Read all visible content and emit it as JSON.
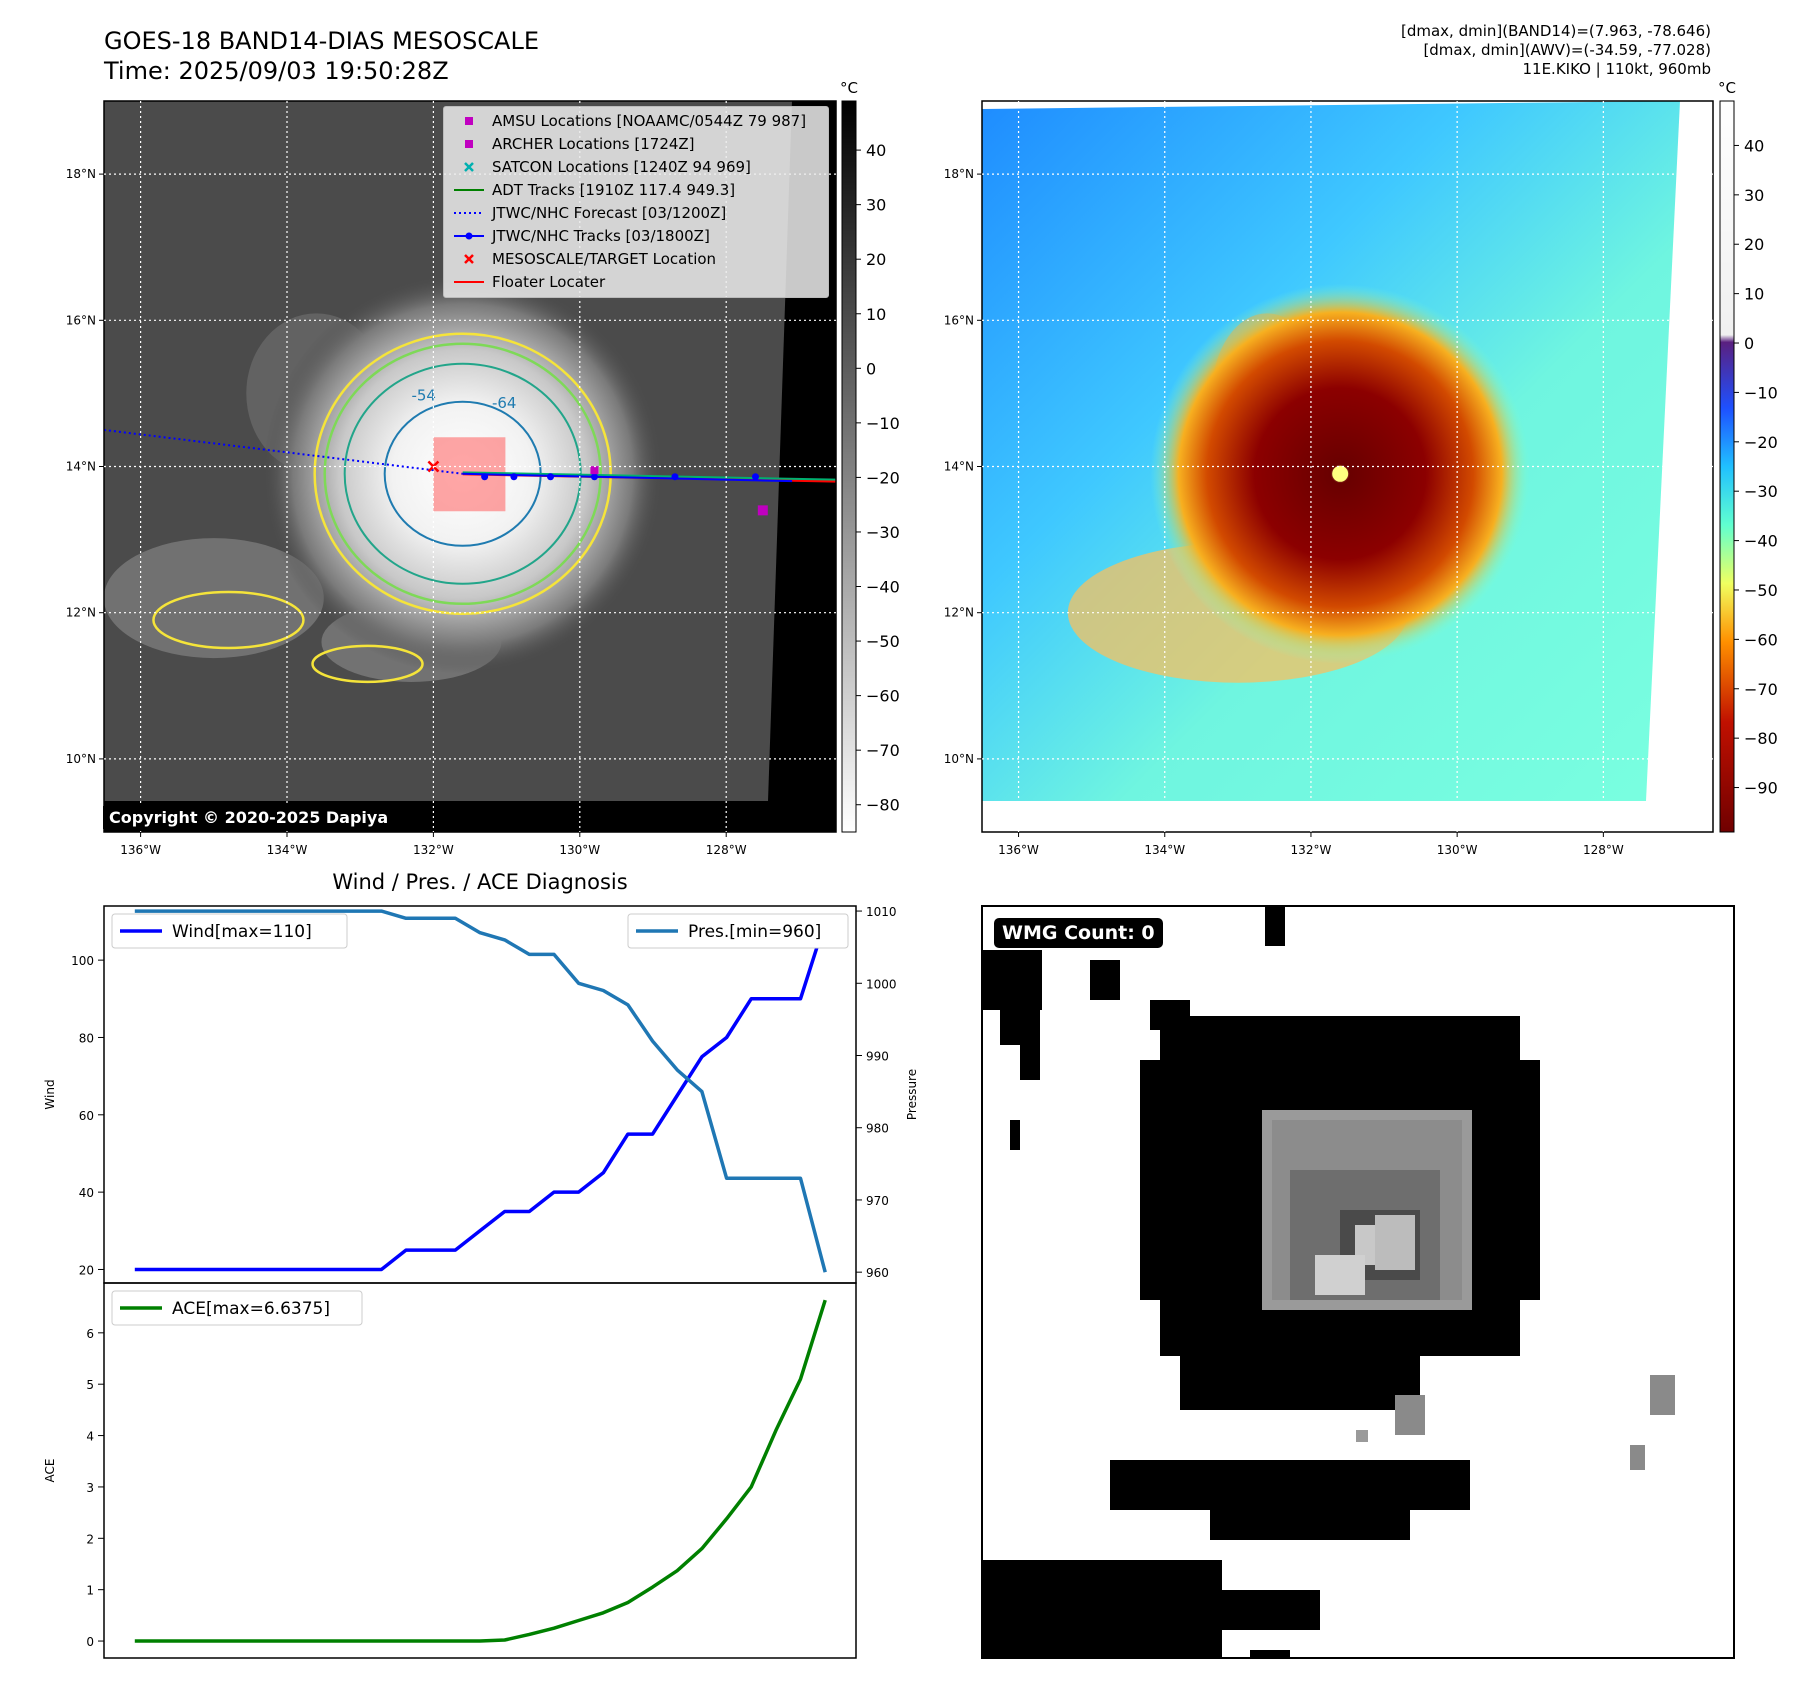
{
  "header": {
    "title_line1": "GOES-18 BAND14-DIAS MESOSCALE",
    "title_line2": "Time: 2025/09/03 19:50:28Z",
    "stats_line1": "[dmax, dmin](BAND14)=(7.963, -78.646)",
    "stats_line2": "[dmax, dmin](AWV)=(-34.59, -77.028)",
    "stats_line3": "11E.KIKO | 110kt, 960mb"
  },
  "map_axes": {
    "lon_ticks": [
      "136°W",
      "134°W",
      "132°W",
      "130°W",
      "128°W"
    ],
    "lat_ticks": [
      "18°N",
      "16°N",
      "14°N",
      "12°N",
      "10°N"
    ],
    "lon_values": [
      -136,
      -134,
      -132,
      -130,
      -128
    ],
    "lat_values": [
      18,
      16,
      14,
      12,
      10
    ],
    "lon_range": [
      -136.5,
      -126.5
    ],
    "lat_range": [
      9.0,
      19.0
    ]
  },
  "ir_panel": {
    "colorbar_unit": "°C",
    "colorbar_ticks": [
      "40",
      "30",
      "20",
      "10",
      "0",
      "−10",
      "−20",
      "−30",
      "−40",
      "−50",
      "−60",
      "−70",
      "−80"
    ],
    "colorbar_values": [
      40,
      30,
      20,
      10,
      0,
      -10,
      -20,
      -30,
      -40,
      -50,
      -60,
      -70,
      -80
    ],
    "colorbar_range": [
      -85,
      49
    ],
    "contour_labels": [
      "-54",
      "-64"
    ],
    "copyright": "Copyright © 2020-2025 Dapiya",
    "legend": [
      {
        "label": "AMSU Locations [NOAAMC/0544Z 79 987]",
        "marker": "square",
        "color": "#c000c0"
      },
      {
        "label": "ARCHER Locations [1724Z]",
        "marker": "square",
        "color": "#c000c0"
      },
      {
        "label": "SATCON Locations [1240Z 94 969]",
        "marker": "x",
        "color": "#00b0b0"
      },
      {
        "label": "ADT Tracks [1910Z 117.4 949.3]",
        "marker": "line",
        "color": "#008000"
      },
      {
        "label": "JTWC/NHC Forecast [03/1200Z]",
        "marker": "dotted",
        "color": "#0000ff"
      },
      {
        "label": "JTWC/NHC Tracks [03/1800Z]",
        "marker": "line-dot",
        "color": "#0000ff"
      },
      {
        "label": "MESOSCALE/TARGET Location",
        "marker": "x",
        "color": "#ff0000"
      },
      {
        "label": "Floater Locater",
        "marker": "line",
        "color": "#ff0000"
      }
    ]
  },
  "awv_panel": {
    "colorbar_unit": "°C",
    "colorbar_ticks": [
      "40",
      "30",
      "20",
      "10",
      "0",
      "−10",
      "−20",
      "−30",
      "−40",
      "−50",
      "−60",
      "−70",
      "−80",
      "−90"
    ],
    "colorbar_values": [
      40,
      30,
      20,
      10,
      0,
      -10,
      -20,
      -30,
      -40,
      -50,
      -60,
      -70,
      -80,
      -90
    ],
    "colorbar_range": [
      -99,
      49
    ]
  },
  "wmg_panel": {
    "badge": "WMG Count: 0"
  },
  "chart_data": [
    {
      "type": "line",
      "title": "Wind / Pres. / ACE Diagnosis",
      "ylabel": "Wind",
      "ylabel_right": "Pressure",
      "x": [
        0,
        1,
        2,
        3,
        4,
        5,
        6,
        7,
        8,
        9,
        10,
        11,
        12,
        13,
        14,
        15,
        16,
        17,
        18,
        19,
        20,
        21,
        22,
        23,
        24,
        25,
        26,
        27,
        28
      ],
      "xlim": [
        -1.25,
        29.25
      ],
      "ylim": [
        16.5,
        114
      ],
      "ylim_right": [
        958.5,
        1010.7
      ],
      "yticks": [
        20,
        40,
        60,
        80,
        100
      ],
      "yticks_right": [
        960,
        970,
        980,
        990,
        1000,
        1010
      ],
      "series": [
        {
          "name": "Wind[max=110]",
          "axis": "left",
          "color": "#0000ff",
          "values": [
            20,
            20,
            20,
            20,
            20,
            20,
            20,
            20,
            20,
            20,
            20,
            25,
            25,
            25,
            30,
            35,
            35,
            40,
            40,
            45,
            55,
            55,
            65,
            75,
            80,
            90,
            90,
            90,
            110
          ]
        },
        {
          "name": "Pres.[min=960]",
          "axis": "right",
          "color": "#1f77b4",
          "values": [
            1010,
            1010,
            1010,
            1010,
            1010,
            1010,
            1010,
            1010,
            1010,
            1010,
            1010,
            1009,
            1009,
            1009,
            1007,
            1006,
            1004,
            1004,
            1000,
            999,
            997,
            992,
            988,
            985,
            973,
            973,
            973,
            973,
            960
          ]
        }
      ]
    },
    {
      "type": "line",
      "title": "",
      "ylabel": "ACE",
      "x": [
        0,
        1,
        2,
        3,
        4,
        5,
        6,
        7,
        8,
        9,
        10,
        11,
        12,
        13,
        14,
        15,
        16,
        17,
        18,
        19,
        20,
        21,
        22,
        23,
        24,
        25,
        26,
        27,
        28
      ],
      "xlim": [
        -1.25,
        29.25
      ],
      "ylim": [
        -0.33,
        6.97
      ],
      "yticks": [
        0,
        1,
        2,
        3,
        4,
        5,
        6
      ],
      "series": [
        {
          "name": "ACE[max=6.6375]",
          "color": "#008000",
          "values": [
            0,
            0,
            0,
            0,
            0,
            0,
            0,
            0,
            0,
            0,
            0,
            0,
            0,
            0,
            0,
            0.02,
            0.13,
            0.25,
            0.4,
            0.55,
            0.75,
            1.05,
            1.37,
            1.8,
            2.38,
            3.0,
            4.1,
            5.1,
            6.6375
          ]
        }
      ]
    }
  ]
}
